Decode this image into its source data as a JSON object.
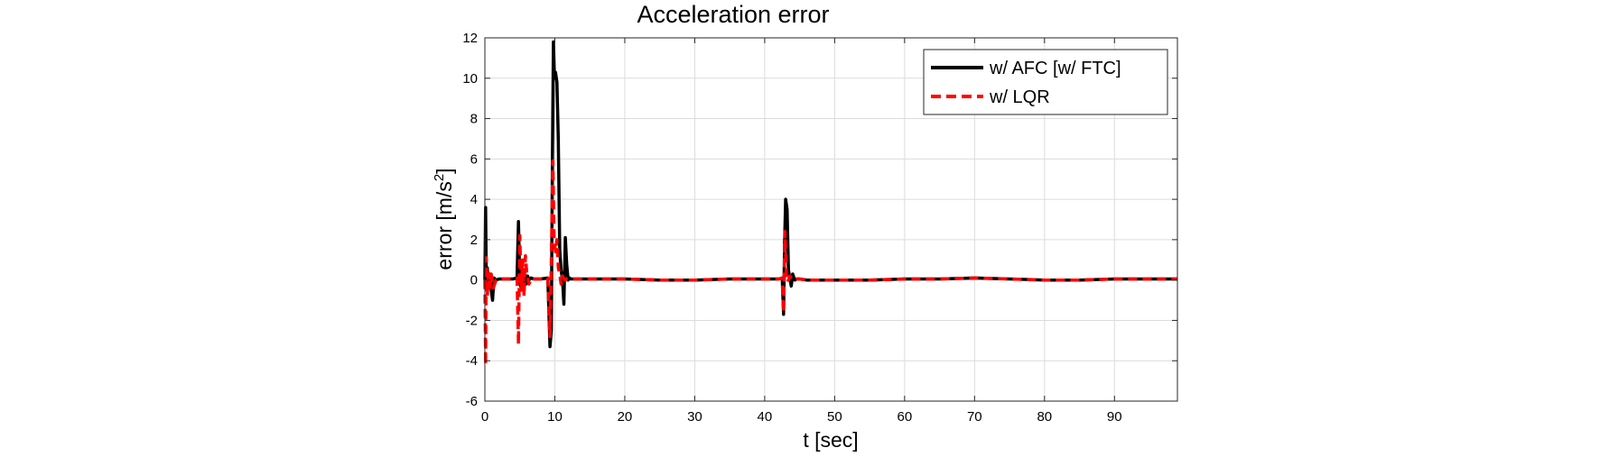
{
  "chart_data": {
    "type": "line",
    "title": "Acceleration error",
    "xlabel": "t [sec]",
    "ylabel_main": "error [m/s",
    "ylabel_sup": "2",
    "ylabel_close": "]",
    "xlim": [
      0,
      99
    ],
    "ylim": [
      -6,
      12
    ],
    "xticks": [
      0,
      10,
      20,
      30,
      40,
      50,
      60,
      70,
      80,
      90
    ],
    "yticks": [
      -6,
      -4,
      -2,
      0,
      2,
      4,
      6,
      8,
      10,
      12
    ],
    "grid": true,
    "legend_position": "top-right",
    "series": [
      {
        "name": "w/ AFC [w/ FTC]",
        "color": "#000000",
        "style": "solid",
        "x": [
          0,
          0.1,
          0.2,
          0.35,
          0.5,
          0.7,
          0.9,
          1.1,
          1.3,
          1.6,
          2.0,
          3,
          4,
          4.6,
          4.8,
          4.95,
          5.1,
          5.3,
          5.5,
          5.7,
          5.9,
          6.1,
          6.3,
          6.6,
          7,
          8,
          9,
          9.3,
          9.5,
          9.65,
          9.8,
          9.95,
          10.1,
          10.3,
          10.5,
          10.7,
          10.9,
          11.1,
          11.3,
          11.5,
          11.7,
          11.9,
          12.1,
          12.3,
          12.6,
          13,
          15,
          20,
          25,
          30,
          35,
          40,
          42,
          42.5,
          42.7,
          42.85,
          43.0,
          43.2,
          43.4,
          43.6,
          43.8,
          44.0,
          44.3,
          44.6,
          45,
          46,
          50,
          55,
          60,
          65,
          70,
          75,
          80,
          85,
          90,
          95,
          99
        ],
        "y": [
          0,
          3.6,
          0.2,
          0.6,
          -0.4,
          0.3,
          -0.5,
          -1.0,
          0.1,
          0.0,
          0.05,
          0.05,
          0.05,
          0.1,
          2.9,
          0.5,
          -0.3,
          0.6,
          -0.4,
          0.3,
          -0.2,
          0.2,
          0.0,
          0.1,
          0.05,
          0.05,
          0.1,
          -3.3,
          -2.5,
          6.0,
          11.8,
          10.0,
          10.3,
          9.8,
          7.0,
          1.5,
          0.5,
          0.0,
          -1.2,
          2.1,
          0.8,
          0.0,
          0.1,
          0.05,
          0.05,
          0.05,
          0.05,
          0.05,
          0.0,
          0.0,
          0.05,
          0.05,
          0.05,
          0.1,
          -1.7,
          2.0,
          4.0,
          3.5,
          0.5,
          0.1,
          -0.3,
          0.3,
          0.0,
          0.05,
          0.05,
          0.0,
          0.0,
          0.0,
          0.05,
          0.05,
          0.1,
          0.05,
          0.0,
          0.0,
          0.05,
          0.05,
          0.05
        ]
      },
      {
        "name": "w/ LQR",
        "color": "#ff0000",
        "style": "dashed",
        "x": [
          0,
          0.1,
          0.2,
          0.35,
          0.5,
          0.7,
          0.9,
          1.2,
          1.6,
          2.0,
          3,
          4,
          4.6,
          4.8,
          5.0,
          5.2,
          5.4,
          5.6,
          5.8,
          6.0,
          6.3,
          6.7,
          7,
          8,
          9,
          9.3,
          9.5,
          9.7,
          9.9,
          10.1,
          10.3,
          10.5,
          10.7,
          10.9,
          11.1,
          11.4,
          11.7,
          12.0,
          12.5,
          13,
          15,
          20,
          25,
          30,
          35,
          40,
          42,
          42.5,
          42.7,
          42.9,
          43.1,
          43.3,
          43.6,
          44,
          44.5,
          45,
          46,
          50,
          55,
          60,
          65,
          70,
          75,
          80,
          85,
          90,
          95,
          99
        ],
        "y": [
          0,
          -4.2,
          1.1,
          -0.8,
          0.4,
          -0.5,
          0.3,
          -0.4,
          0.0,
          0.05,
          0.05,
          0.05,
          0.1,
          -3.2,
          2.2,
          -0.5,
          1.0,
          -0.8,
          1.2,
          0.3,
          -0.2,
          0.1,
          0.05,
          0.05,
          0.1,
          -2.8,
          1.0,
          5.9,
          2.0,
          1.4,
          2.0,
          0.6,
          0.3,
          -0.2,
          0.2,
          0.0,
          0.05,
          0.05,
          0.05,
          0.05,
          0.05,
          0.05,
          0.0,
          0.0,
          0.05,
          0.05,
          0.05,
          0.1,
          -1.6,
          2.4,
          0.3,
          -0.1,
          0.2,
          0.0,
          0.05,
          0.05,
          0.0,
          0.0,
          0.0,
          0.05,
          0.05,
          0.1,
          0.05,
          0.0,
          0.0,
          0.05,
          0.05,
          0.05
        ]
      }
    ]
  }
}
